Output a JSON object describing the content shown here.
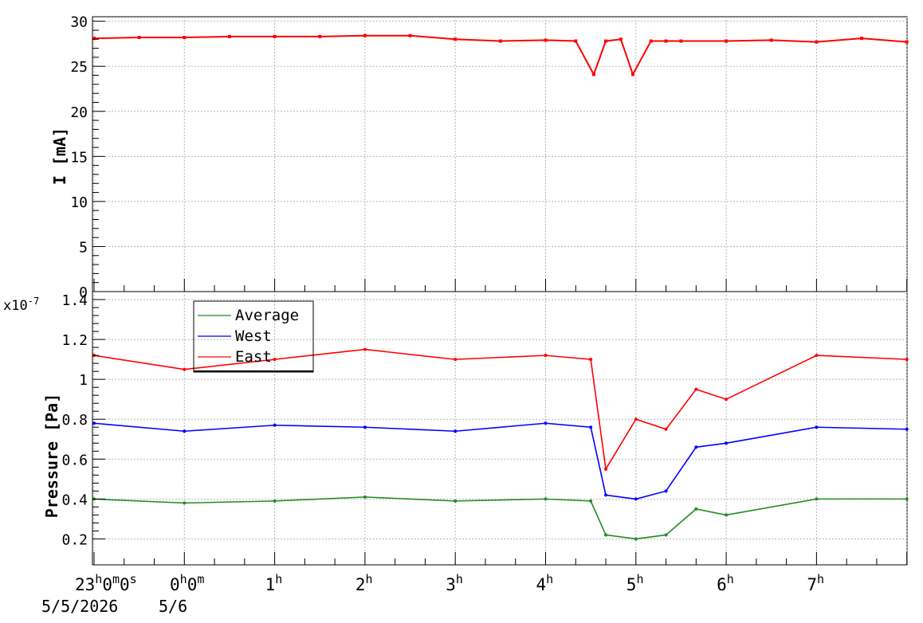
{
  "chart_data": [
    {
      "type": "scatter",
      "ylabel": "I [mA]",
      "ylim": [
        0,
        30.5
      ],
      "yticks": [
        "0",
        "5",
        "10",
        "15",
        "20",
        "25",
        "30"
      ],
      "grid": true,
      "series": [
        {
          "color": "#ff0000",
          "x": [
            "23:00",
            "23:30",
            "0:00",
            "0:30",
            "1:00",
            "1:30",
            "2:00",
            "2:30",
            "3:00",
            "3:30",
            "4:00",
            "4:20",
            "4:32",
            "4:40",
            "4:50",
            "4:58",
            "5:10",
            "5:20",
            "5:30",
            "6:00",
            "6:30",
            "7:00",
            "7:30",
            "8:00"
          ],
          "values": [
            28.1,
            28.2,
            28.2,
            28.3,
            28.3,
            28.3,
            28.4,
            28.4,
            28.0,
            27.8,
            27.9,
            27.8,
            24.1,
            27.8,
            28.0,
            24.1,
            27.8,
            27.8,
            27.8,
            27.8,
            27.9,
            27.7,
            28.1,
            27.7
          ]
        }
      ]
    },
    {
      "type": "line",
      "ylabel": "Pressure [Pa]",
      "yexponent": "x10",
      "yexponent_power": "-7",
      "ylim": [
        0.07,
        1.44
      ],
      "yticks": [
        "0.2",
        "0.4",
        "0.6",
        "0.8",
        "1",
        "1.2",
        "1.4"
      ],
      "grid": true,
      "legend_position": "top-left",
      "series": [
        {
          "name": "Average",
          "color": "#228b22",
          "x": [
            "23:00",
            "0:00",
            "1:00",
            "2:00",
            "3:00",
            "4:00",
            "4:30",
            "4:40",
            "5:00",
            "5:20",
            "5:40",
            "6:00",
            "7:00",
            "8:00"
          ],
          "values": [
            0.4,
            0.38,
            0.39,
            0.41,
            0.39,
            0.4,
            0.39,
            0.22,
            0.2,
            0.22,
            0.35,
            0.32,
            0.4,
            0.4
          ]
        },
        {
          "name": "West",
          "color": "#0000ff",
          "x": [
            "23:00",
            "0:00",
            "1:00",
            "2:00",
            "3:00",
            "4:00",
            "4:30",
            "4:40",
            "5:00",
            "5:20",
            "5:40",
            "6:00",
            "7:00",
            "8:00"
          ],
          "values": [
            0.78,
            0.74,
            0.77,
            0.76,
            0.74,
            0.78,
            0.76,
            0.42,
            0.4,
            0.44,
            0.66,
            0.68,
            0.76,
            0.75
          ]
        },
        {
          "name": "East",
          "color": "#ff0000",
          "x": [
            "23:00",
            "0:00",
            "1:00",
            "2:00",
            "3:00",
            "4:00",
            "4:30",
            "4:40",
            "5:00",
            "5:20",
            "5:40",
            "6:00",
            "7:00",
            "8:00"
          ],
          "values": [
            1.12,
            1.05,
            1.1,
            1.15,
            1.1,
            1.12,
            1.1,
            0.55,
            0.8,
            0.75,
            0.95,
            0.9,
            1.12,
            1.1
          ]
        }
      ]
    }
  ],
  "x_axis": {
    "start_label_hour": "23",
    "start_label_min": "0",
    "start_label_sec": "0",
    "midnight_hour": "0",
    "midnight_min": "0",
    "hour_ticks": [
      "1",
      "2",
      "3",
      "4",
      "5",
      "6",
      "7"
    ],
    "unit_h": "h",
    "unit_m": "m",
    "unit_s": "s",
    "date1": "5/5/2026",
    "date2": "5/6"
  }
}
